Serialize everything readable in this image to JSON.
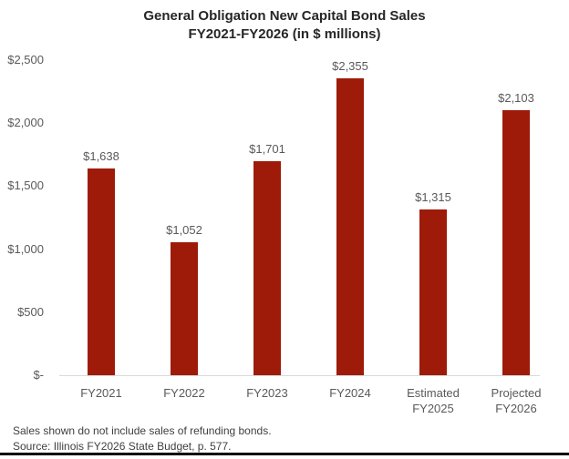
{
  "chart_data": {
    "type": "bar",
    "title_line1": "General Obligation New Capital Bond Sales",
    "title_line2": "FY2021-FY2026 (in $ millions)",
    "categories": [
      "FY2021",
      "FY2022",
      "FY2023",
      "FY2024",
      "Estimated FY2025",
      "Projected FY2026"
    ],
    "category_label_lines": [
      [
        "FY2021"
      ],
      [
        "FY2022"
      ],
      [
        "FY2023"
      ],
      [
        "FY2024"
      ],
      [
        "Estimated",
        "FY2025"
      ],
      [
        "Projected",
        "FY2026"
      ]
    ],
    "values": [
      1638,
      1052,
      1701,
      2355,
      1315,
      2103
    ],
    "value_labels": [
      "$1,638",
      "$1,052",
      "$1,701",
      "$2,355",
      "$1,315",
      "$2,103"
    ],
    "y_ticks": [
      {
        "value": 2500,
        "label": "$2,500"
      },
      {
        "value": 2000,
        "label": "$2,000"
      },
      {
        "value": 1500,
        "label": "$1,500"
      },
      {
        "value": 1000,
        "label": "$1,000"
      },
      {
        "value": 500,
        "label": "$500"
      },
      {
        "value": 0,
        "label": "$-"
      }
    ],
    "ylim": [
      0,
      2500
    ],
    "xlabel": "",
    "ylabel": "",
    "grid": false,
    "legend": false,
    "bar_color": "#9E1B09",
    "text_color": "#595959",
    "title_color": "#262626",
    "axis_line_color": "#D9D9D9"
  },
  "footnotes": {
    "line1": "Sales shown do not include sales of refunding bonds.",
    "line2": "Source: Illinois FY2026 State Budget, p. 577."
  }
}
